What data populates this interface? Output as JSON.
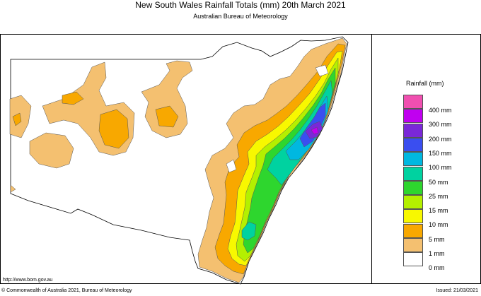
{
  "title": "New South Wales Rainfall Totals (mm)    20th March 2021",
  "subtitle": "Australian Bureau of Meteorology",
  "legend": {
    "title": "Rainfall (mm)",
    "items": [
      {
        "label": "400 mm",
        "color": "#f04fb0"
      },
      {
        "label": "300 mm",
        "color": "#c000f0"
      },
      {
        "label": "200 mm",
        "color": "#7a28d8"
      },
      {
        "label": "150 mm",
        "color": "#3a4ef0"
      },
      {
        "label": "100 mm",
        "color": "#00b8e0"
      },
      {
        "label": "50 mm",
        "color": "#00d2a0"
      },
      {
        "label": "25 mm",
        "color": "#2ed62e"
      },
      {
        "label": "15 mm",
        "color": "#b4f000"
      },
      {
        "label": "10 mm",
        "color": "#f8f800"
      },
      {
        "label": "5 mm",
        "color": "#f8a800"
      },
      {
        "label": "1 mm",
        "color": "#f4c070"
      },
      {
        "label": "0 mm",
        "color": "#ffffff"
      }
    ]
  },
  "url": "http://www.bom.gov.au",
  "copyright": "© Commonwealth of Australia 2021, Bureau of Meteorology",
  "issued": "Issued: 21/03/2021"
}
